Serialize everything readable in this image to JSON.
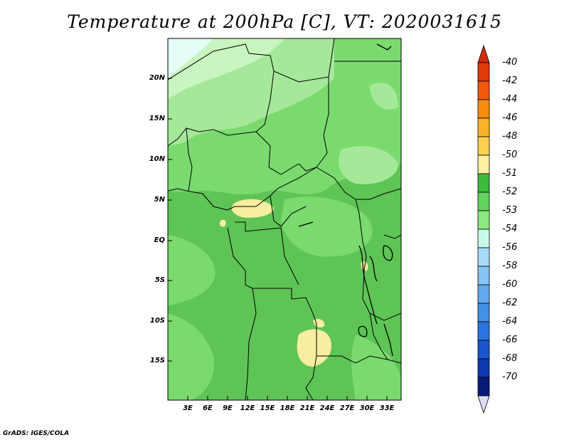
{
  "title": "Temperature at 200hPa [C], VT: 2020031615",
  "credit": "GrADS: IGES/COLA",
  "colors": {
    "base_green": "#5ec455",
    "mid_green": "#7ada6e",
    "light_green": "#a6e89a",
    "pale_green": "#c8f5c0",
    "pale_cyan": "#e4fdf6",
    "warm_yellow": "#f7eea0",
    "border_line": "#000000"
  },
  "map": {
    "lat_labels": [
      "20N",
      "15N",
      "10N",
      "5N",
      "EQ",
      "5S",
      "10S",
      "15S"
    ],
    "lon_labels": [
      "3E",
      "6E",
      "9E",
      "12E",
      "15E",
      "18E",
      "21E",
      "24E",
      "27E",
      "30E",
      "33E"
    ]
  },
  "colorbar": {
    "labels": [
      "-40",
      "-42",
      "-44",
      "-46",
      "-48",
      "-50",
      "-51",
      "-52",
      "-53",
      "-54",
      "-56",
      "-58",
      "-60",
      "-62",
      "-64",
      "-66",
      "-68",
      "-70"
    ],
    "colors": [
      "#e03a0a",
      "#f05a0a",
      "#f88a10",
      "#fcb228",
      "#fcd050",
      "#fdf0a0",
      "#3cbc3c",
      "#62d25a",
      "#8ce880",
      "#c8fae8",
      "#a6dcf8",
      "#86c4f4",
      "#62a8ee",
      "#4290e8",
      "#2a74e0",
      "#1a56d0",
      "#0e38b0",
      "#0a1a78"
    ],
    "top_arrow_color": "#d42a0a",
    "bottom_arrow_color": "#dcdcf8"
  }
}
